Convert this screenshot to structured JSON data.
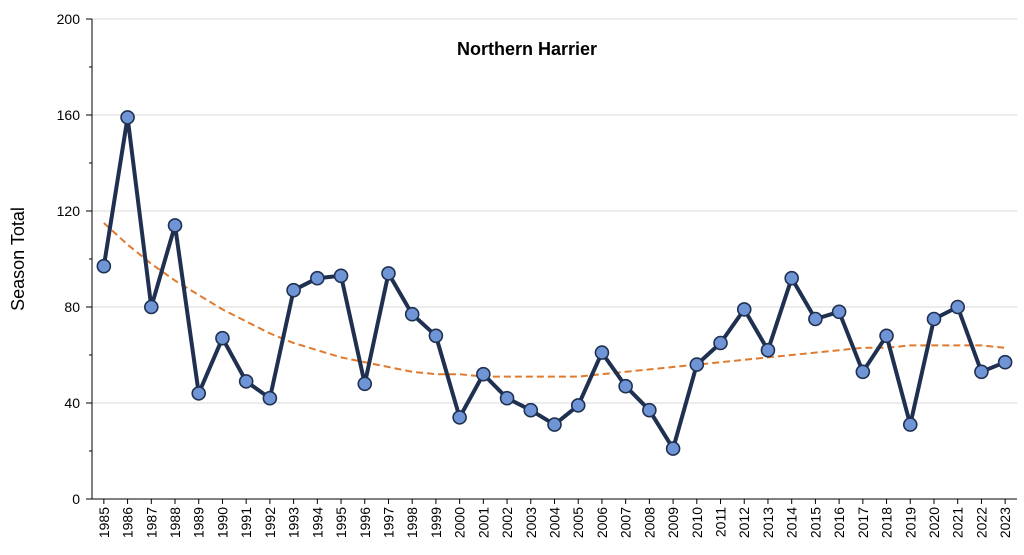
{
  "chart_data": {
    "type": "line",
    "title": "Northern Harrier",
    "xlabel": "",
    "ylabel": "Season Total",
    "ylim": [
      0,
      200
    ],
    "yticks": [
      0,
      40,
      80,
      120,
      160,
      200
    ],
    "grid": true,
    "categories": [
      "1985",
      "1986",
      "1987",
      "1988",
      "1989",
      "1990",
      "1991",
      "1992",
      "1993",
      "1994",
      "1995",
      "1996",
      "1997",
      "1998",
      "1999",
      "2000",
      "2001",
      "2002",
      "2003",
      "2004",
      "2005",
      "2006",
      "2007",
      "2008",
      "2009",
      "2010",
      "2011",
      "2012",
      "2013",
      "2014",
      "2015",
      "2016",
      "2017",
      "2018",
      "2019",
      "2020",
      "2021",
      "2022",
      "2023"
    ],
    "series": [
      {
        "values": [
          97,
          159,
          80,
          114,
          44,
          67,
          49,
          42,
          87,
          92,
          93,
          48,
          94,
          77,
          68,
          34,
          52,
          42,
          37,
          31,
          39,
          61,
          47,
          37,
          21,
          56,
          65,
          79,
          62,
          92,
          75,
          78,
          53,
          68,
          31,
          75,
          80,
          53,
          57
        ],
        "line_color": "#1f3050",
        "marker_color": "#6f95d6"
      }
    ],
    "trendline": {
      "style": "dashed",
      "color": "#e07a2e",
      "values": [
        115,
        106,
        98,
        91,
        85,
        79,
        74,
        69,
        65,
        62,
        59,
        57,
        55,
        53,
        52,
        52,
        51,
        51,
        51,
        51,
        51,
        52,
        53,
        54,
        55,
        56,
        57,
        58,
        59,
        60,
        61,
        62,
        63,
        63,
        64,
        64,
        64,
        64,
        63
      ]
    }
  }
}
